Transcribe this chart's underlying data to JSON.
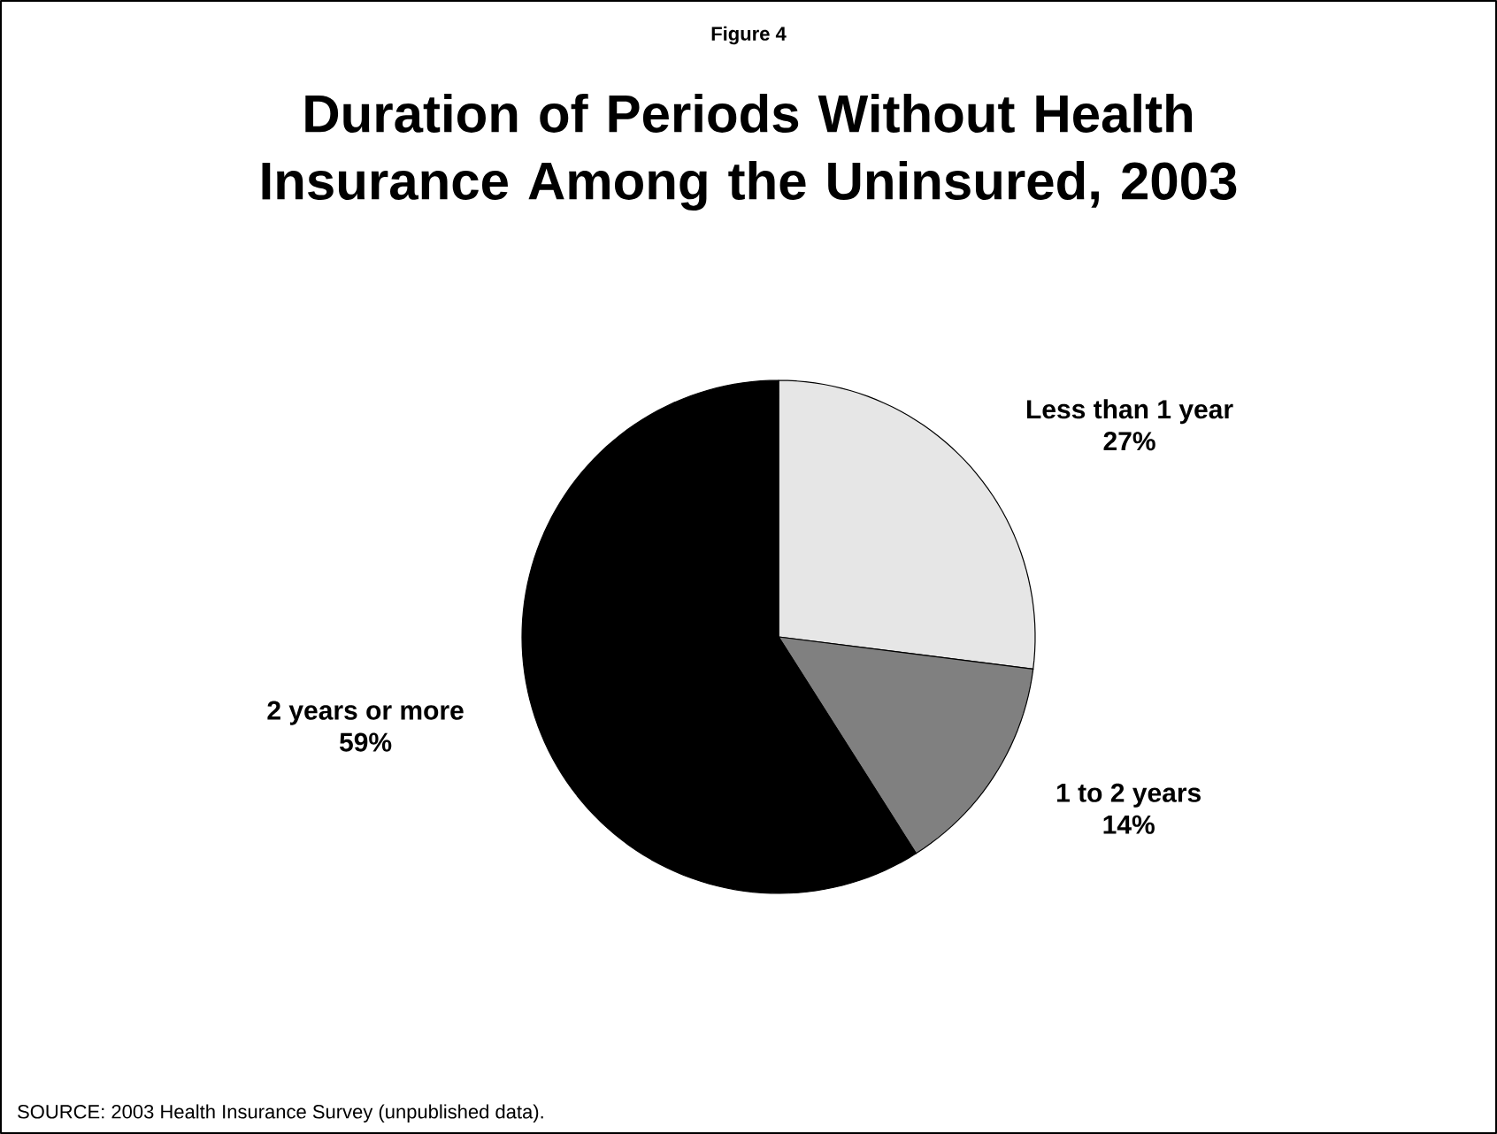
{
  "chart_data": {
    "type": "pie",
    "subtitle": "Figure 4",
    "title": "Duration of Periods Without Health Insurance Among the Uninsured, 2003",
    "categories": [
      "Less than 1 year",
      "1 to 2 years",
      "2 years or more"
    ],
    "values": [
      27,
      14,
      59
    ],
    "colors": [
      "#e6e6e6",
      "#808080",
      "#000000"
    ],
    "data_labels": true,
    "value_labels": [
      "27%",
      "14%",
      "59%"
    ],
    "annotations": [
      "SOURCE: 2003 Health Insurance Survey (unpublished data)."
    ]
  }
}
